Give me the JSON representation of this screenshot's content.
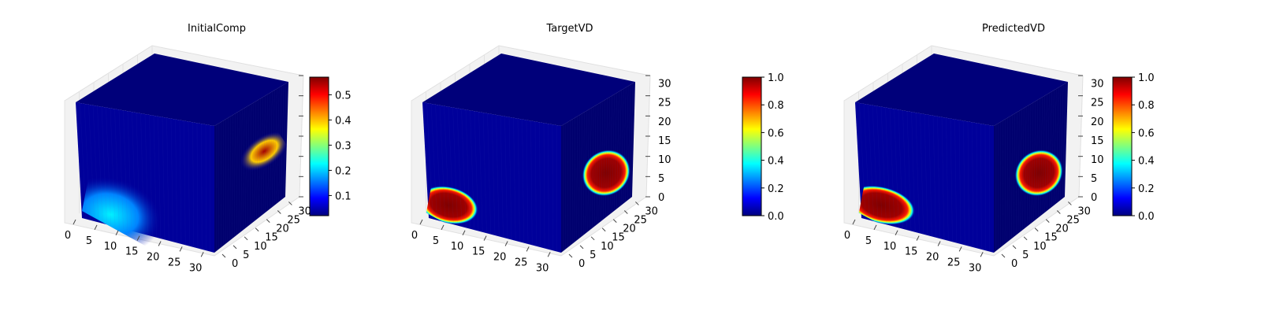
{
  "colormap": {
    "name": "jet",
    "stops": [
      "#00007f",
      "#0000ff",
      "#007fff",
      "#00ffff",
      "#7fff7f",
      "#ffff00",
      "#ff7f00",
      "#ff0000",
      "#7f0000"
    ]
  },
  "chart_data": [
    {
      "type": "3d-voxel",
      "title": "InitialComp",
      "x_ticks": [
        "0",
        "5",
        "10",
        "15",
        "20",
        "25",
        "30"
      ],
      "y_ticks": [
        "0",
        "5",
        "10",
        "15",
        "20",
        "25",
        "30"
      ],
      "z_ticks": [],
      "xlim": [
        0,
        32
      ],
      "ylim": [
        0,
        32
      ],
      "zlim": [
        0,
        32
      ],
      "colorbar": {
        "min": 0.02,
        "max": 0.57,
        "ticks": [
          "0.1",
          "0.2",
          "0.3",
          "0.4",
          "0.5"
        ],
        "tick_values": [
          0.1,
          0.2,
          0.3,
          0.4,
          0.5
        ]
      },
      "blobs": [
        {
          "face": "front",
          "cx": 7,
          "cy": 3,
          "rx": 12,
          "ry": 10,
          "value": 0.22
        },
        {
          "face": "side",
          "cx": 22,
          "cy": 17,
          "rx": 10,
          "ry": 4,
          "value": 0.55
        }
      ]
    },
    {
      "type": "3d-voxel",
      "title": "TargetVD",
      "x_ticks": [
        "0",
        "5",
        "10",
        "15",
        "20",
        "25",
        "30"
      ],
      "y_ticks": [
        "0",
        "5",
        "10",
        "15",
        "20",
        "25",
        "30"
      ],
      "z_ticks": [
        "0",
        "5",
        "10",
        "15",
        "20",
        "25",
        "30"
      ],
      "xlim": [
        0,
        32
      ],
      "ylim": [
        0,
        32
      ],
      "zlim": [
        0,
        32
      ],
      "colorbar": {
        "min": 0.0,
        "max": 1.0,
        "ticks": [
          "0.0",
          "0.2",
          "0.4",
          "0.6",
          "0.8",
          "1.0"
        ],
        "tick_values": [
          0.0,
          0.2,
          0.4,
          0.6,
          0.8,
          1.0
        ]
      },
      "blobs": [
        {
          "face": "front",
          "cx": 5,
          "cy": 5,
          "rx": 7,
          "ry": 5,
          "value": 1.0
        },
        {
          "face": "side",
          "cx": 20,
          "cy": 12,
          "rx": 9,
          "ry": 6,
          "value": 1.0
        }
      ]
    },
    {
      "type": "3d-voxel",
      "title": "PredictedVD",
      "x_ticks": [
        "0",
        "5",
        "10",
        "15",
        "20",
        "25",
        "30"
      ],
      "y_ticks": [
        "0",
        "5",
        "10",
        "15",
        "20",
        "25",
        "30"
      ],
      "z_ticks": [
        "0",
        "5",
        "10",
        "15",
        "20",
        "25",
        "30"
      ],
      "xlim": [
        0,
        32
      ],
      "ylim": [
        0,
        32
      ],
      "zlim": [
        0,
        32
      ],
      "colorbar": {
        "min": 0.0,
        "max": 1.0,
        "ticks": [
          "0.0",
          "0.2",
          "0.4",
          "0.6",
          "0.8",
          "1.0"
        ],
        "tick_values": [
          0.0,
          0.2,
          0.4,
          0.6,
          0.8,
          1.0
        ]
      },
      "blobs": [
        {
          "face": "front",
          "cx": 5,
          "cy": 5,
          "rx": 8,
          "ry": 5,
          "value": 1.0
        },
        {
          "face": "side",
          "cx": 20,
          "cy": 12,
          "rx": 9,
          "ry": 6,
          "value": 1.0
        }
      ]
    }
  ]
}
